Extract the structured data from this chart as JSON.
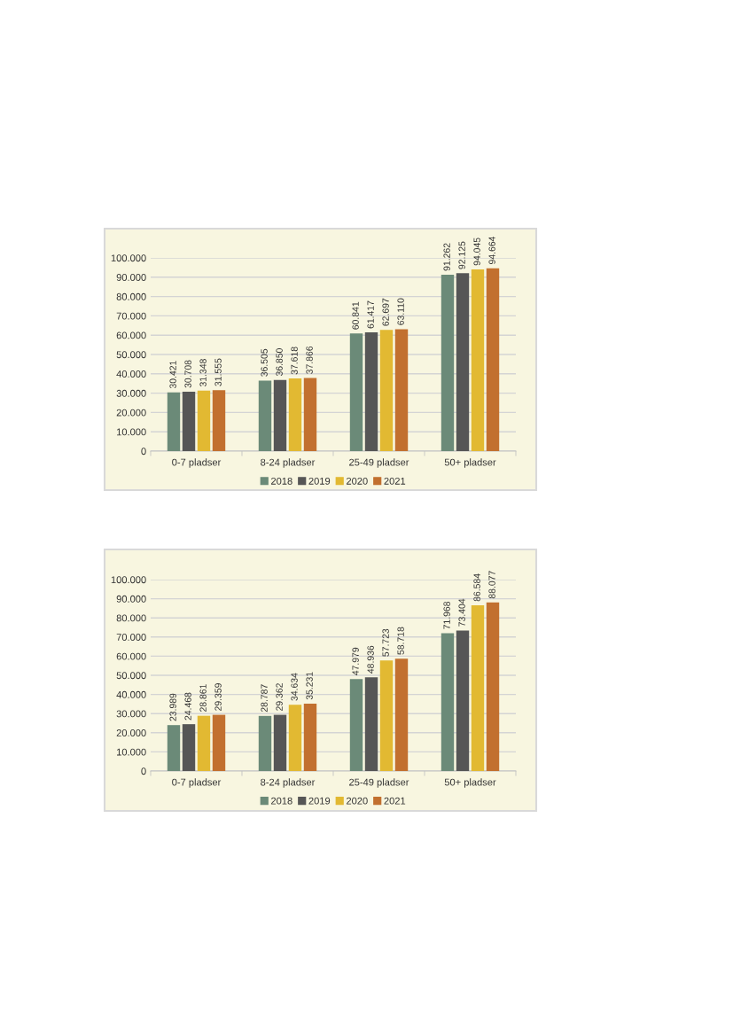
{
  "chart_data": [
    {
      "type": "bar",
      "categories": [
        "0-7 pladser",
        "8-24 pladser",
        "25-49 pladser",
        "50+ pladser"
      ],
      "series": [
        {
          "name": "2018",
          "color": "#6b8a78",
          "values": [
            30421,
            36505,
            60841,
            91262
          ],
          "value_labels": [
            "30.421",
            "36.505",
            "60.841",
            "91.262"
          ]
        },
        {
          "name": "2019",
          "color": "#565656",
          "values": [
            30708,
            36850,
            61417,
            92125
          ],
          "value_labels": [
            "30.708",
            "36.850",
            "61.417",
            "92.125"
          ]
        },
        {
          "name": "2020",
          "color": "#e2b932",
          "values": [
            31348,
            37618,
            62697,
            94045
          ],
          "value_labels": [
            "31.348",
            "37.618",
            "62.697",
            "94.045"
          ]
        },
        {
          "name": "2021",
          "color": "#c2702f",
          "values": [
            31555,
            37866,
            63110,
            94664
          ],
          "value_labels": [
            "31.555",
            "37.866",
            "63.110",
            "94.664"
          ]
        }
      ],
      "ylim": [
        0,
        100000
      ],
      "yticks": [
        0,
        {
          "value": 10000,
          "label": "10.000"
        },
        {
          "value": 20000,
          "label": "20.000"
        },
        {
          "value": 30000,
          "label": "30.000"
        },
        {
          "value": 40000,
          "label": "40.000"
        },
        {
          "value": 50000,
          "label": "50.000"
        },
        {
          "value": 60000,
          "label": "60.000"
        },
        {
          "value": 70000,
          "label": "70.000"
        },
        {
          "value": 80000,
          "label": "80.000"
        },
        {
          "value": 90000,
          "label": "90.000"
        },
        {
          "value": 100000,
          "label": "100.000"
        }
      ],
      "grid": "y",
      "legend": "bottom"
    },
    {
      "type": "bar",
      "categories": [
        "0-7 pladser",
        "8-24 pladser",
        "25-49 pladser",
        "50+ pladser"
      ],
      "series": [
        {
          "name": "2018",
          "color": "#6b8a78",
          "values": [
            23989,
            28787,
            47979,
            71968
          ],
          "value_labels": [
            "23.989",
            "28.787",
            "47.979",
            "71.968"
          ]
        },
        {
          "name": "2019",
          "color": "#565656",
          "values": [
            24468,
            29362,
            48936,
            73404
          ],
          "value_labels": [
            "24.468",
            "29.362",
            "48.936",
            "73.404"
          ]
        },
        {
          "name": "2020",
          "color": "#e2b932",
          "values": [
            28861,
            34634,
            57723,
            86584
          ],
          "value_labels": [
            "28.861",
            "34.634",
            "57.723",
            "86.584"
          ]
        },
        {
          "name": "2021",
          "color": "#c2702f",
          "values": [
            29359,
            35231,
            58718,
            88077
          ],
          "value_labels": [
            "29.359",
            "35.231",
            "58.718",
            "88.077"
          ]
        }
      ],
      "ylim": [
        0,
        100000
      ],
      "yticks": [
        0,
        {
          "value": 10000,
          "label": "10.000"
        },
        {
          "value": 20000,
          "label": "20.000"
        },
        {
          "value": 30000,
          "label": "30.000"
        },
        {
          "value": 40000,
          "label": "40.000"
        },
        {
          "value": 50000,
          "label": "50.000"
        },
        {
          "value": 60000,
          "label": "60.000"
        },
        {
          "value": 70000,
          "label": "70.000"
        },
        {
          "value": 80000,
          "label": "80.000"
        },
        {
          "value": 90000,
          "label": "90.000"
        },
        {
          "value": 100000,
          "label": "100.000"
        }
      ],
      "grid": "y",
      "legend": "bottom"
    }
  ]
}
